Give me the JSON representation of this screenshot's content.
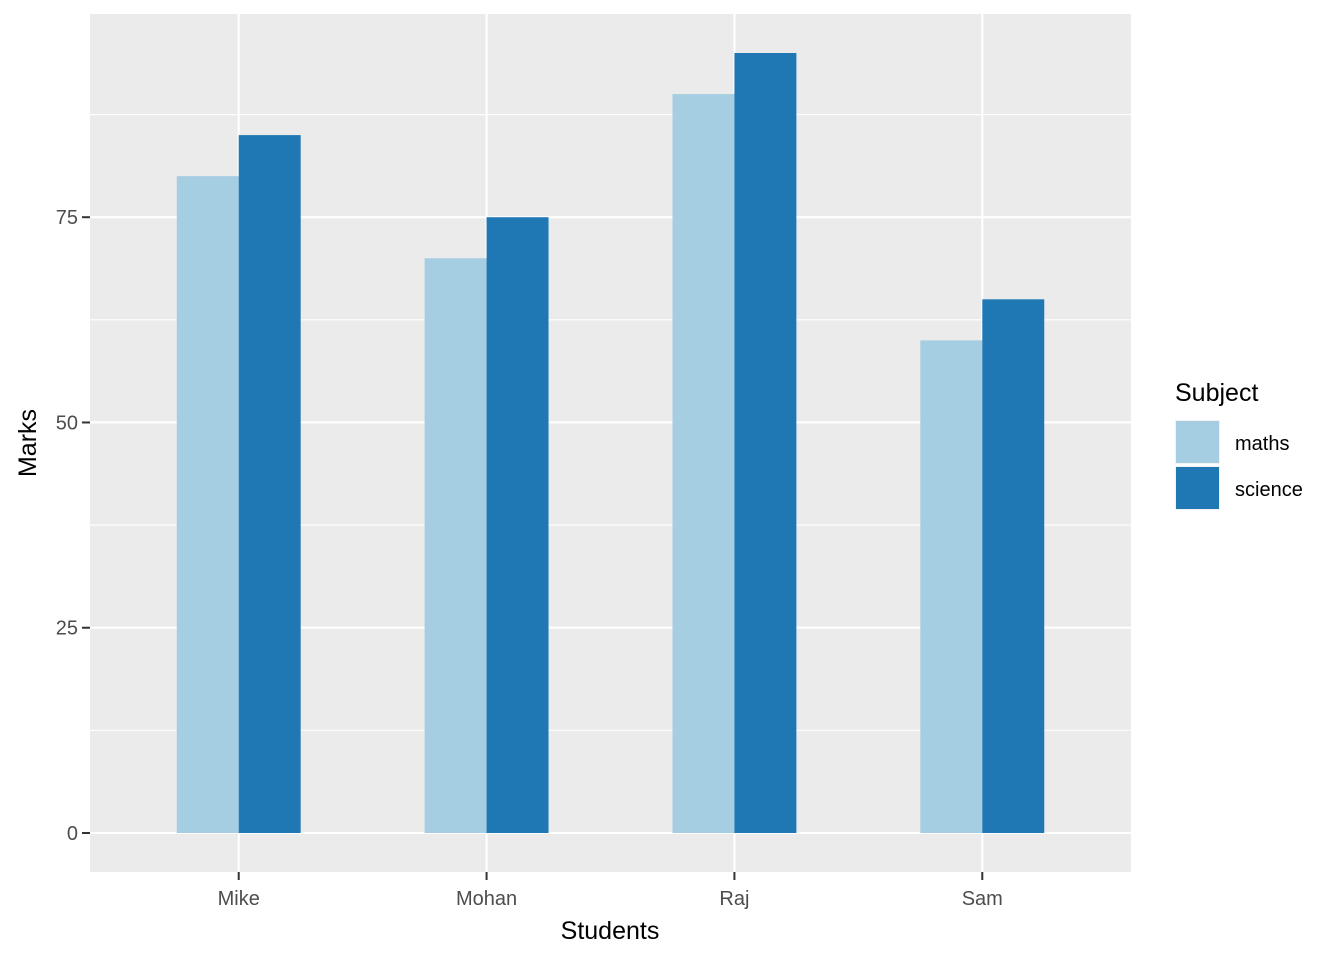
{
  "chart_data": {
    "type": "bar",
    "title": "",
    "xlabel": "Students",
    "ylabel": "Marks",
    "categories": [
      "Mike",
      "Mohan",
      "Raj",
      "Sam"
    ],
    "series": [
      {
        "name": "maths",
        "values": [
          80,
          70,
          90,
          60
        ],
        "color": "#a6cee3"
      },
      {
        "name": "science",
        "values": [
          85,
          75,
          95,
          65
        ],
        "color": "#1f78b4"
      }
    ],
    "ylim": [
      -4.75,
      99.75
    ],
    "yticks": [
      0,
      25,
      50,
      75
    ],
    "grid": true,
    "legend": {
      "title": "Subject",
      "position": "right"
    },
    "panel_background": "#ebebeb",
    "grid_color": "#ffffff"
  }
}
